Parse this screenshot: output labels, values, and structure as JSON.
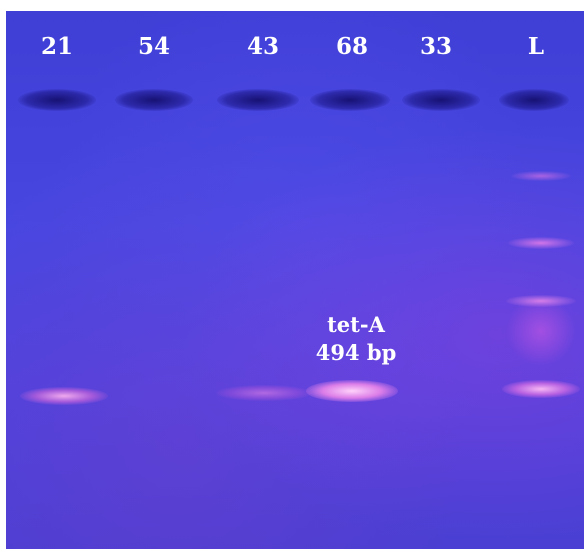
{
  "lanes": [
    {
      "label": "21"
    },
    {
      "label": "54"
    },
    {
      "label": "43"
    },
    {
      "label": "68"
    },
    {
      "label": "33"
    },
    {
      "label": "L"
    }
  ],
  "annotation": {
    "gene": "tet-A",
    "size": "494 bp"
  },
  "colors": {
    "gel_background": "#4545dc",
    "band": "#ffc8f0",
    "well": "#1c1878",
    "text": "#ffffff"
  }
}
